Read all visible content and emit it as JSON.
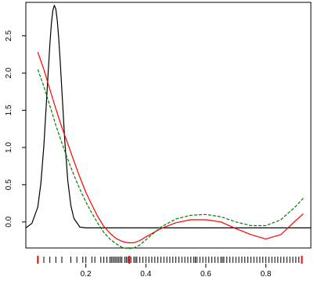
{
  "chart_data": {
    "type": "line",
    "title": "",
    "xlabel": "",
    "ylabel": "",
    "xlim": [
      0.0,
      0.95
    ],
    "ylim": [
      -0.35,
      2.95
    ],
    "x_ticks": [
      0.2,
      0.4,
      0.6,
      0.8
    ],
    "x_tick_labels": [
      "0.2",
      "0.4",
      "0.6",
      "0.8"
    ],
    "y_ticks": [
      0.0,
      0.5,
      1.0,
      1.5,
      2.0,
      2.5
    ],
    "y_tick_labels": [
      "0.0",
      "0.5",
      "1.0",
      "1.5",
      "2.0",
      "2.5"
    ],
    "grid": false,
    "legend": "none",
    "series": [
      {
        "color": "#000000",
        "style": "solid",
        "x": [
          0.0,
          0.02,
          0.04,
          0.05,
          0.06,
          0.07,
          0.08,
          0.085,
          0.09,
          0.095,
          0.1,
          0.105,
          0.11,
          0.115,
          0.12,
          0.13,
          0.14,
          0.15,
          0.16,
          0.18,
          0.2,
          0.3,
          0.5,
          0.7,
          0.95
        ],
        "y": [
          -0.08,
          -0.02,
          0.2,
          0.52,
          1.02,
          1.7,
          2.39,
          2.66,
          2.84,
          2.91,
          2.86,
          2.7,
          2.45,
          2.12,
          1.77,
          1.08,
          0.55,
          0.22,
          0.05,
          -0.07,
          -0.08,
          -0.08,
          -0.08,
          -0.08,
          -0.08
        ]
      },
      {
        "color": "#ff0000",
        "style": "solid",
        "x": [
          0.04,
          0.06,
          0.08,
          0.1,
          0.12,
          0.14,
          0.16,
          0.18,
          0.2,
          0.22,
          0.24,
          0.26,
          0.28,
          0.3,
          0.32,
          0.34,
          0.36,
          0.38,
          0.4,
          0.45,
          0.5,
          0.55,
          0.6,
          0.65,
          0.7,
          0.75,
          0.8,
          0.85,
          0.9,
          0.925
        ],
        "y": [
          2.28,
          2.05,
          1.78,
          1.52,
          1.27,
          1.05,
          0.82,
          0.6,
          0.4,
          0.23,
          0.07,
          -0.06,
          -0.15,
          -0.22,
          -0.26,
          -0.28,
          -0.28,
          -0.25,
          -0.2,
          -0.09,
          -0.01,
          0.03,
          0.03,
          0.0,
          -0.09,
          -0.17,
          -0.23,
          -0.17,
          0.02,
          0.11
        ]
      },
      {
        "color": "#008000",
        "style": "dashed",
        "x": [
          0.04,
          0.06,
          0.08,
          0.1,
          0.12,
          0.14,
          0.16,
          0.18,
          0.2,
          0.22,
          0.24,
          0.26,
          0.28,
          0.3,
          0.32,
          0.34,
          0.36,
          0.38,
          0.4,
          0.45,
          0.5,
          0.55,
          0.6,
          0.65,
          0.7,
          0.75,
          0.8,
          0.85,
          0.9,
          0.925
        ],
        "y": [
          2.05,
          1.82,
          1.56,
          1.3,
          1.06,
          0.84,
          0.63,
          0.44,
          0.27,
          0.12,
          -0.02,
          -0.14,
          -0.23,
          -0.29,
          -0.34,
          -0.36,
          -0.35,
          -0.31,
          -0.24,
          -0.07,
          0.04,
          0.09,
          0.1,
          0.07,
          0.0,
          -0.05,
          -0.05,
          0.03,
          0.21,
          0.32
        ]
      }
    ],
    "rug": {
      "color": "#000000",
      "x": [
        0.04,
        0.06,
        0.08,
        0.1,
        0.12,
        0.15,
        0.17,
        0.19,
        0.2,
        0.22,
        0.23,
        0.25,
        0.26,
        0.27,
        0.28,
        0.285,
        0.29,
        0.295,
        0.3,
        0.305,
        0.31,
        0.315,
        0.32,
        0.33,
        0.335,
        0.34,
        0.345,
        0.35,
        0.36,
        0.365,
        0.37,
        0.38,
        0.39,
        0.4,
        0.41,
        0.42,
        0.43,
        0.44,
        0.45,
        0.46,
        0.47,
        0.48,
        0.49,
        0.5,
        0.51,
        0.52,
        0.53,
        0.54,
        0.55,
        0.56,
        0.565,
        0.57,
        0.58,
        0.59,
        0.6,
        0.61,
        0.62,
        0.63,
        0.64,
        0.65,
        0.655,
        0.66,
        0.67,
        0.68,
        0.69,
        0.7,
        0.71,
        0.72,
        0.73,
        0.74,
        0.75,
        0.76,
        0.77,
        0.78,
        0.79,
        0.8,
        0.81,
        0.82,
        0.83,
        0.84,
        0.85,
        0.86,
        0.87,
        0.88,
        0.89,
        0.9,
        0.91,
        0.92
      ]
    },
    "rug_highlight": {
      "color": "#ff0000",
      "x": [
        0.04,
        0.345,
        0.92
      ]
    }
  }
}
